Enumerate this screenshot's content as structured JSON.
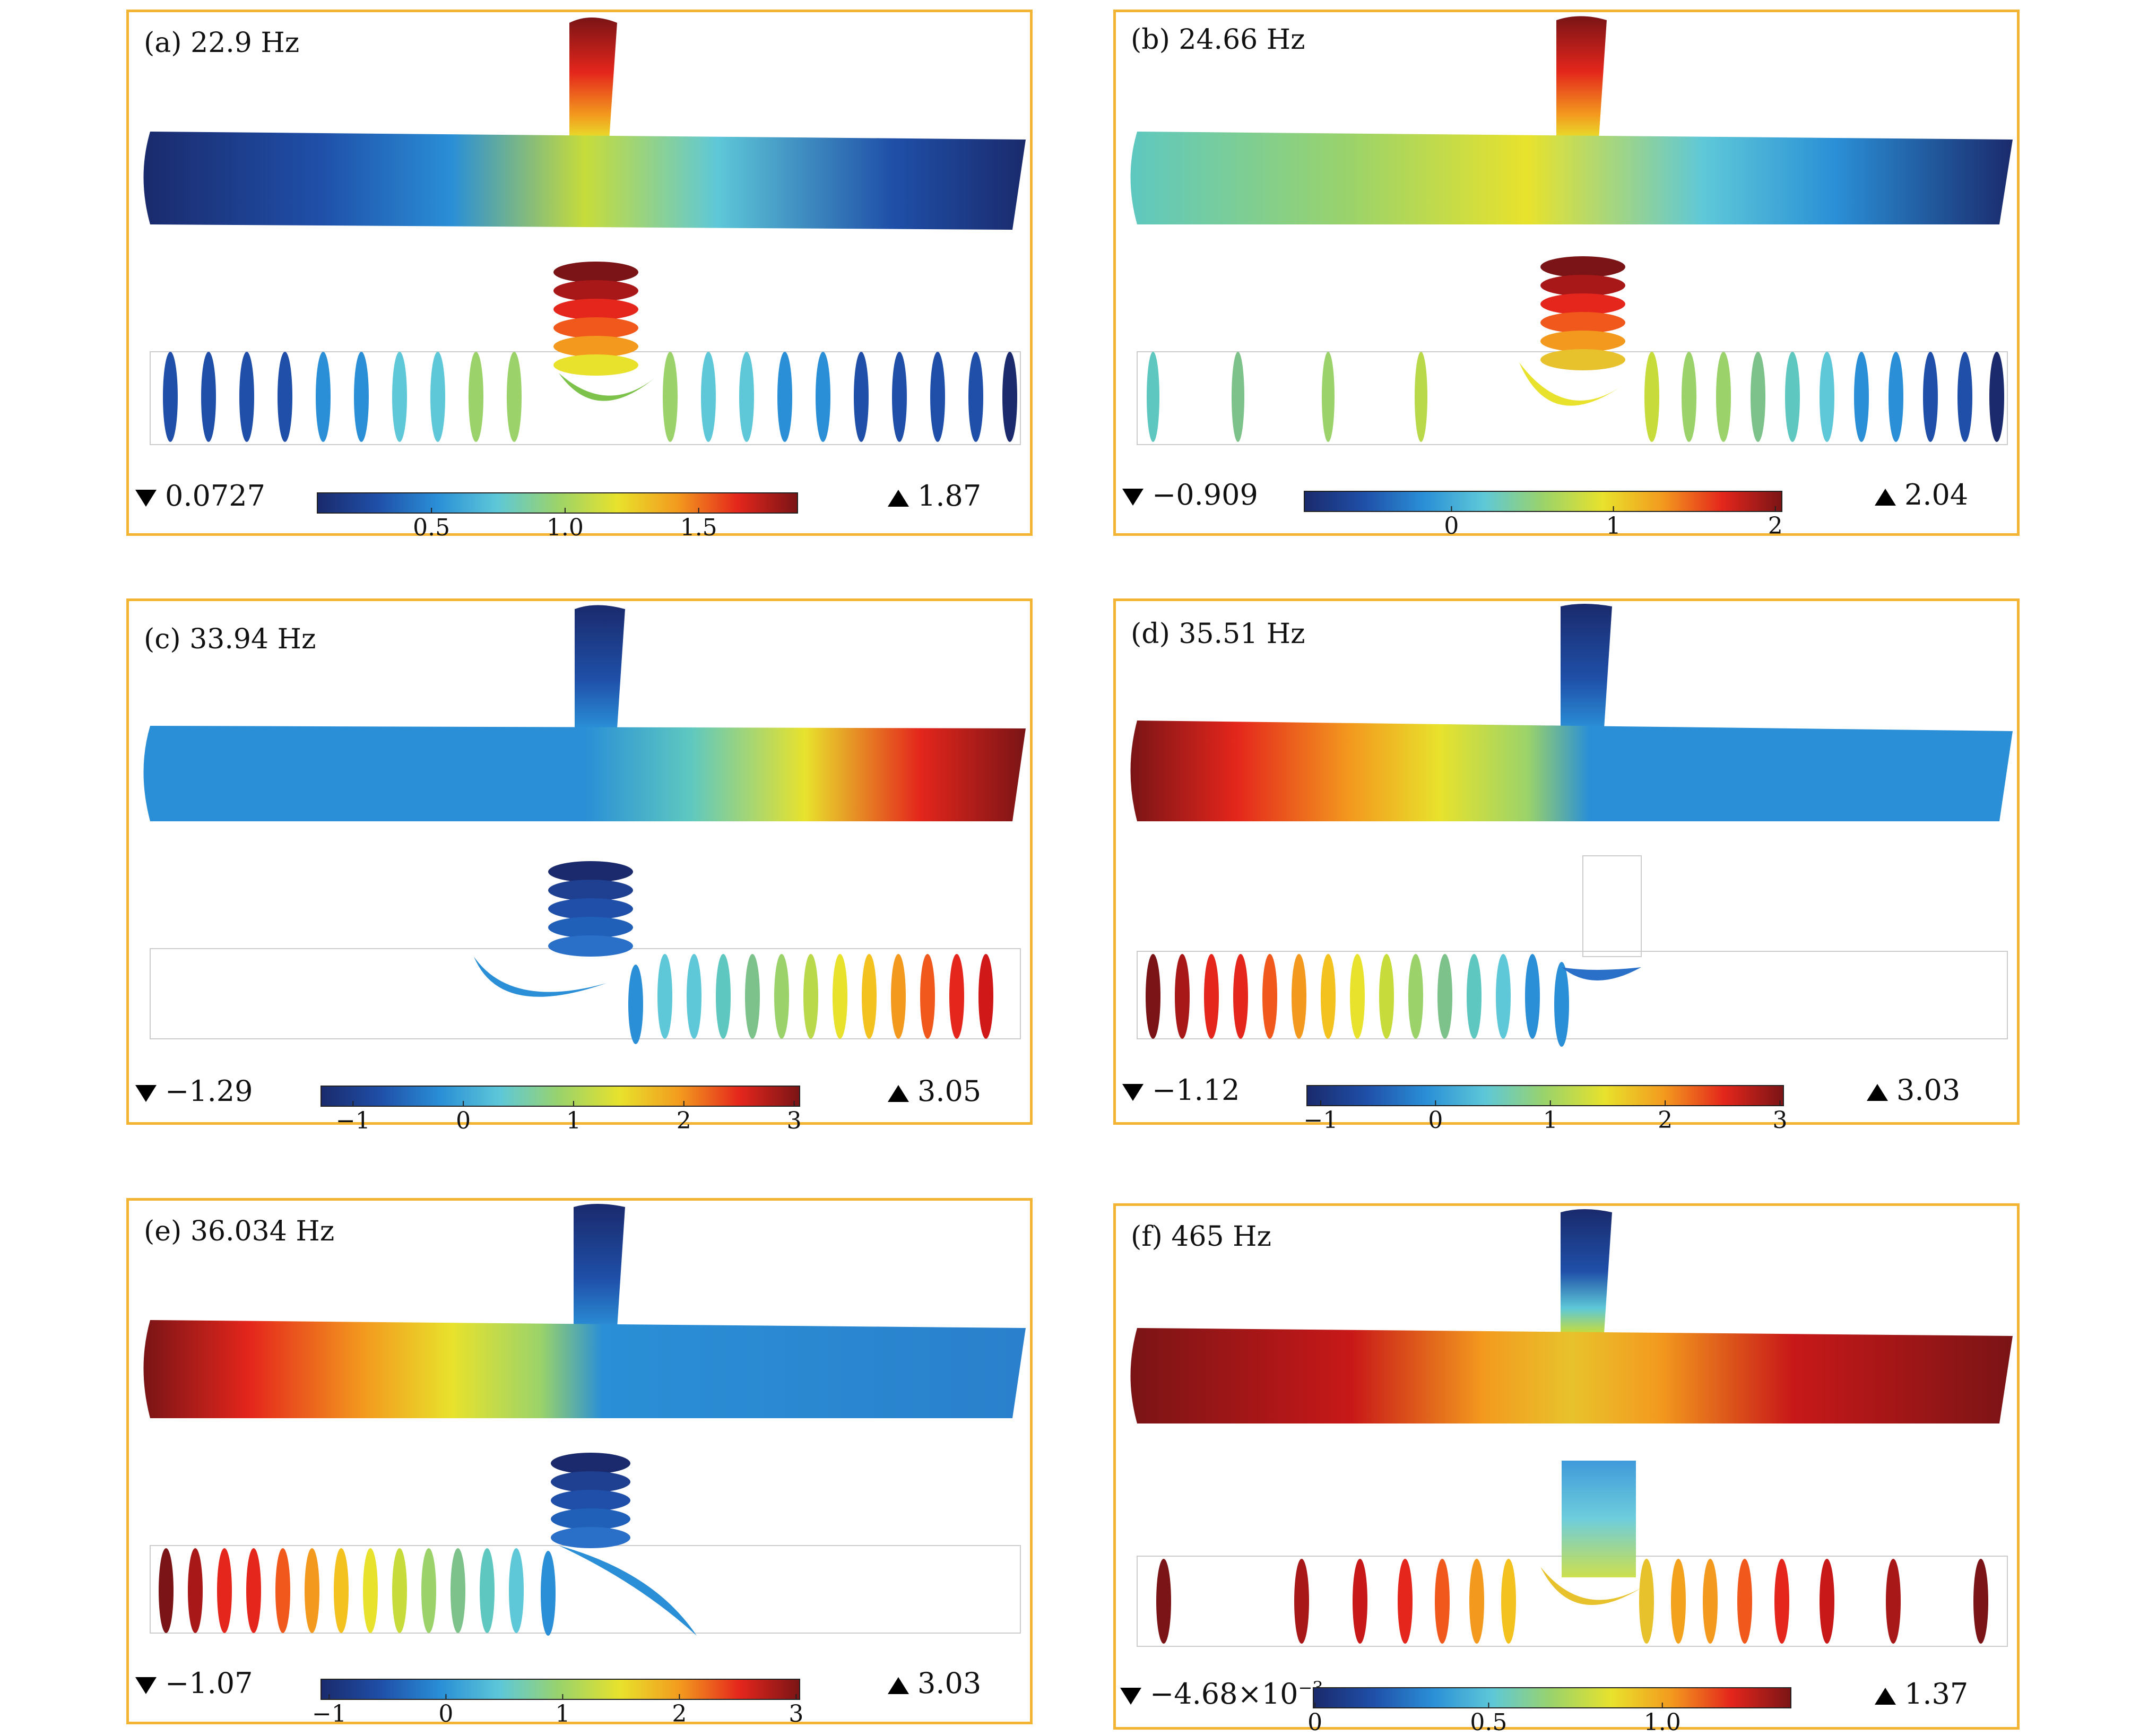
{
  "colors": {
    "frame": "#f2b432",
    "colormap": [
      "#1a2a6c",
      "#1f4fa8",
      "#2a8fd6",
      "#5ec8d8",
      "#9bd36a",
      "#e8e22c",
      "#f39a1e",
      "#e4261c",
      "#7a1416"
    ]
  },
  "panels": [
    {
      "label": "(a) 22.9 Hz",
      "min_text": "0.0727",
      "max_text": "1.87",
      "range": [
        0.0727,
        1.87
      ],
      "ticks": [
        {
          "value": 0.5,
          "text": "0.5"
        },
        {
          "value": 1.0,
          "text": "1.0"
        },
        {
          "value": 1.5,
          "text": "1.5"
        }
      ]
    },
    {
      "label": "(b) 24.66 Hz",
      "min_text": "−0.909",
      "max_text": "2.04",
      "range": [
        -0.909,
        2.04
      ],
      "ticks": [
        {
          "value": 0,
          "text": "0"
        },
        {
          "value": 1,
          "text": "1"
        },
        {
          "value": 2,
          "text": "2"
        }
      ]
    },
    {
      "label": "(c) 33.94 Hz",
      "min_text": "−1.29",
      "max_text": "3.05",
      "range": [
        -1.29,
        3.05
      ],
      "ticks": [
        {
          "value": -1,
          "text": "−1"
        },
        {
          "value": 0,
          "text": "0"
        },
        {
          "value": 1,
          "text": "1"
        },
        {
          "value": 2,
          "text": "2"
        },
        {
          "value": 3,
          "text": "3"
        }
      ]
    },
    {
      "label": "(d) 35.51 Hz",
      "min_text": "−1.12",
      "max_text": "3.03",
      "range": [
        -1.12,
        3.03
      ],
      "ticks": [
        {
          "value": -1,
          "text": "−1"
        },
        {
          "value": 0,
          "text": "0"
        },
        {
          "value": 1,
          "text": "1"
        },
        {
          "value": 2,
          "text": "2"
        },
        {
          "value": 3,
          "text": "3"
        }
      ]
    },
    {
      "label": "(e) 36.034 Hz",
      "min_text": "−1.07",
      "max_text": "3.03",
      "range": [
        -1.07,
        3.03
      ],
      "ticks": [
        {
          "value": -1,
          "text": "−1"
        },
        {
          "value": 0,
          "text": "0"
        },
        {
          "value": 1,
          "text": "1"
        },
        {
          "value": 2,
          "text": "2"
        },
        {
          "value": 3,
          "text": "3"
        }
      ]
    },
    {
      "label": "(f) 465 Hz",
      "min_text": "−4.68×10",
      "min_exp": "−3",
      "max_text": "1.37",
      "range": [
        -0.00468,
        1.37
      ],
      "ticks": [
        {
          "value": 0,
          "text": "0"
        },
        {
          "value": 0.5,
          "text": "0.5"
        },
        {
          "value": 1.0,
          "text": "1.0"
        }
      ]
    }
  ]
}
